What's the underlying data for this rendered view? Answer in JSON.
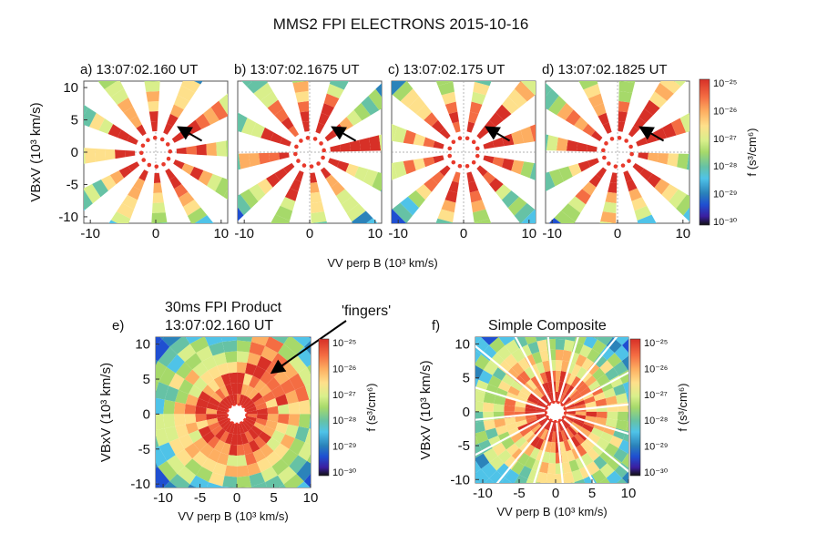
{
  "figure": {
    "title": "MMS2 FPI ELECTRONS 2015-10-16",
    "colorbar": {
      "label": "f (s³/cm⁶)",
      "ticks": [
        "10⁻²⁵",
        "10⁻²⁶",
        "10⁻²⁷",
        "10⁻²⁸",
        "10⁻²⁹",
        "10⁻³⁰"
      ],
      "colors": [
        "#d73027",
        "#f46d43",
        "#fdae61",
        "#fee08b",
        "#d9ef8b",
        "#a6d96a",
        "#66c2a5",
        "#4fc3e8",
        "#2b83ba",
        "#1f4fd1",
        "#3b1ea0",
        "#111111"
      ]
    }
  },
  "chart_data": [
    {
      "id": "a",
      "type": "heatmap",
      "title": "a) 13:07:02.160 UT",
      "xlabel": "",
      "ylabel": "VBxV (10³ km/s)",
      "xticks": [
        "-10",
        "0",
        "10"
      ],
      "yticks": [
        "10",
        "5",
        "0",
        "-5",
        "-10"
      ],
      "xlim": [
        -11,
        11
      ],
      "ylim": [
        -11,
        11
      ],
      "arrow": true
    },
    {
      "id": "b",
      "type": "heatmap",
      "title": "b) 13:07:02.1675 UT",
      "xlabel": "",
      "ylabel": "",
      "xticks": [
        "-10",
        "0",
        "10"
      ],
      "yticks": [],
      "xlim": [
        -11,
        11
      ],
      "ylim": [
        -11,
        11
      ],
      "arrow": true
    },
    {
      "id": "c",
      "type": "heatmap",
      "title": "c) 13:07:02.175 UT",
      "xlabel": "VV perp B (10³ km/s)",
      "ylabel": "",
      "xticks": [
        "-10",
        "0",
        "10"
      ],
      "yticks": [],
      "xlim": [
        -11,
        11
      ],
      "ylim": [
        -11,
        11
      ],
      "arrow": true
    },
    {
      "id": "d",
      "type": "heatmap",
      "title": "d) 13:07:02.1825 UT",
      "xlabel": "",
      "ylabel": "",
      "xticks": [
        "-10",
        "0",
        "10"
      ],
      "yticks": [],
      "xlim": [
        -11,
        11
      ],
      "ylim": [
        -11,
        11
      ],
      "arrow": true
    },
    {
      "id": "e",
      "type": "heatmap",
      "title": "30ms FPI Product",
      "subtitle": "13:07:02.160 UT",
      "panel_label": "e)",
      "annotation": "'fingers'",
      "xlabel": "VV perp B (10³ km/s)",
      "ylabel": "VBxV (10³ km/s)",
      "xticks": [
        "-10",
        "-5",
        "0",
        "5",
        "10"
      ],
      "yticks": [
        "10",
        "5",
        "0",
        "-5",
        "-10"
      ],
      "xlim": [
        -11,
        10
      ],
      "ylim": [
        -10.5,
        11
      ]
    },
    {
      "id": "f",
      "type": "heatmap",
      "title": "Simple Composite",
      "panel_label": "f)",
      "xlabel": "VV perp B (10³ km/s)",
      "ylabel": "VBxV (10³ km/s)",
      "xticks": [
        "-10",
        "-5",
        "0",
        "5",
        "10"
      ],
      "yticks": [
        "10",
        "5",
        "0",
        "-5",
        "-10"
      ],
      "xlim": [
        -11,
        10
      ],
      "ylim": [
        -10.5,
        11
      ]
    }
  ]
}
